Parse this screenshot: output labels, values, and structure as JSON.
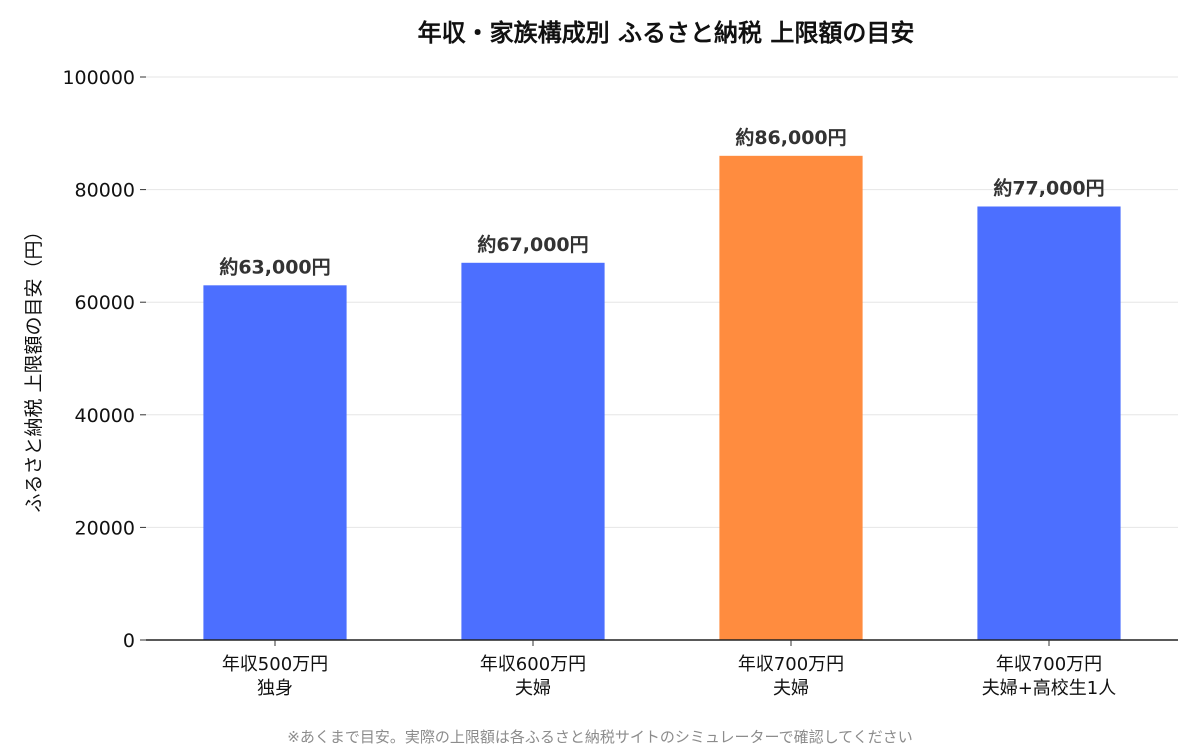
{
  "chart_data": {
    "type": "bar",
    "title": "年収・家族構成別 ふるさと納税 上限額の目安",
    "ylabel": "ふるさと納税 上限額の目安（円）",
    "xlabel": "",
    "ylim": [
      0,
      100000
    ],
    "yticks": [
      "0",
      "20000",
      "40000",
      "60000",
      "80000",
      "100000"
    ],
    "ytick_values": [
      0,
      20000,
      40000,
      60000,
      80000,
      100000
    ],
    "categories": [
      [
        "年収500万円",
        "独身"
      ],
      [
        "年収600万円",
        "夫婦"
      ],
      [
        "年収700万円",
        "夫婦"
      ],
      [
        "年収700万円",
        "夫婦+高校生1人"
      ]
    ],
    "values": [
      63000,
      67000,
      86000,
      77000
    ],
    "data_labels": [
      "約63,000円",
      "約67,000円",
      "約86,000円",
      "約77,000円"
    ],
    "bar_colors": [
      "#4c6fff",
      "#4c6fff",
      "#ff8c3f",
      "#4c6fff"
    ],
    "grid": true,
    "grid_color": "#e6e6e6",
    "footnote": "※あくまで目安。実際の上限額は各ふるさと納税サイトのシミュレーターで確認してください"
  }
}
